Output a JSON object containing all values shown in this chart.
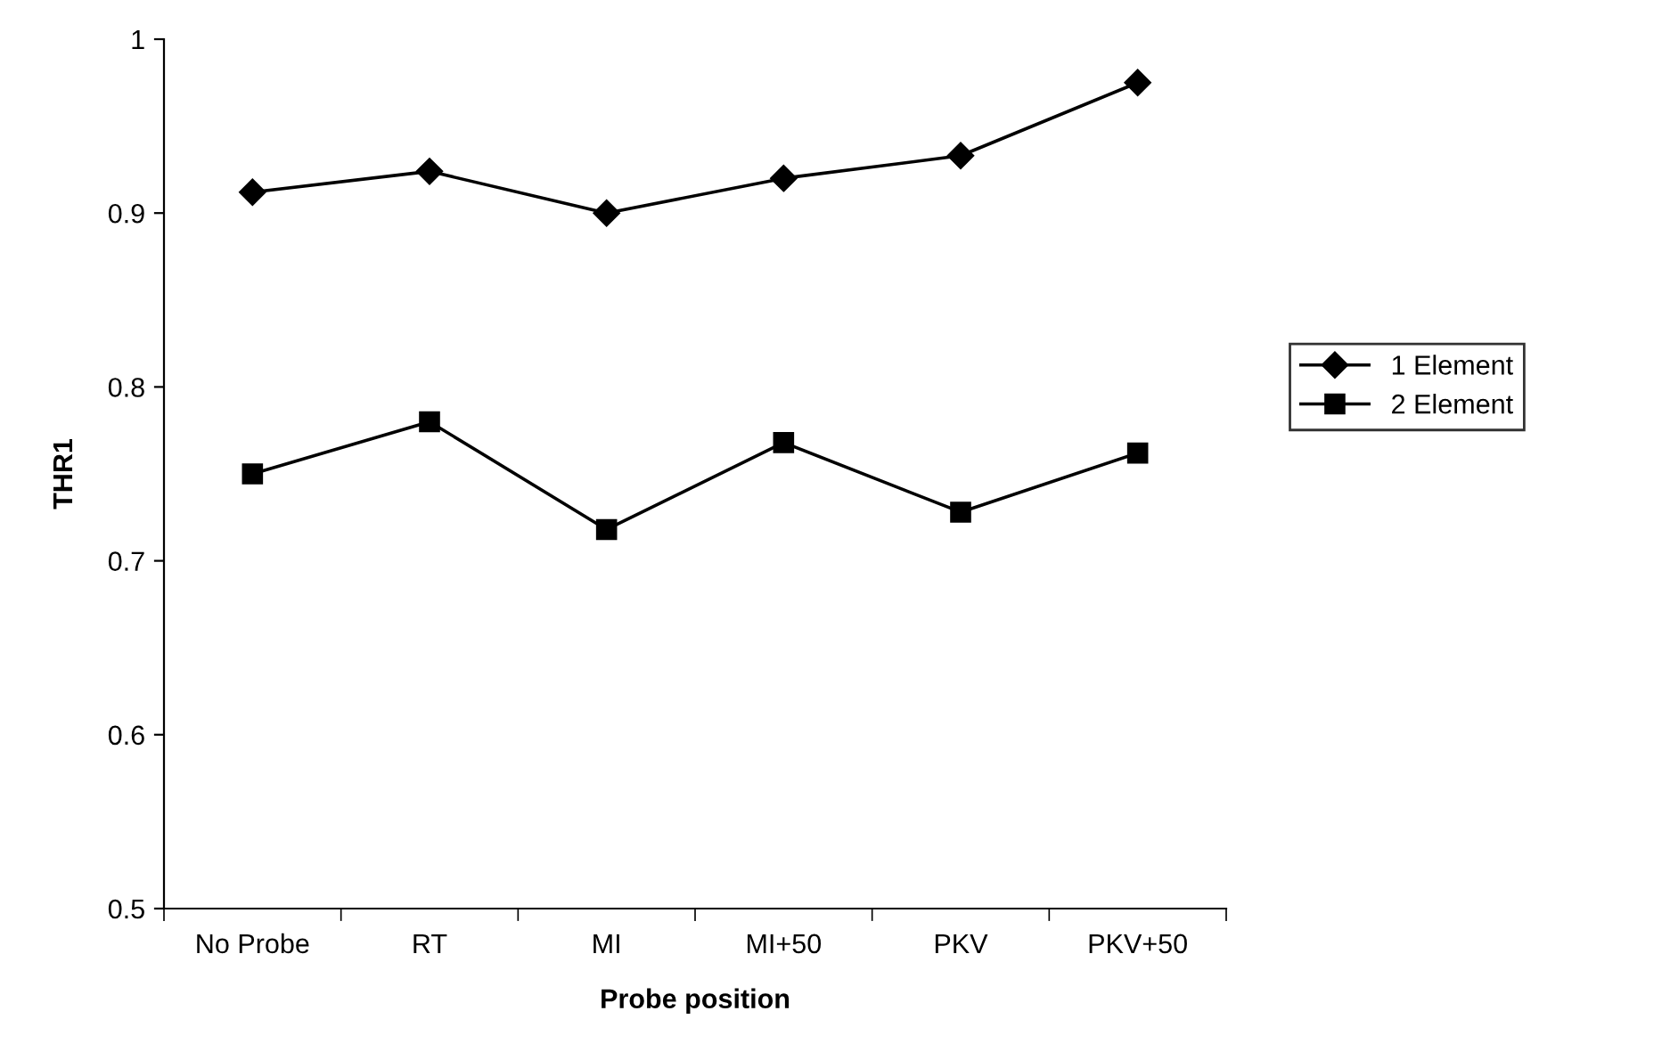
{
  "chart_data": {
    "type": "line",
    "xlabel": "Probe position",
    "ylabel": "THR1",
    "categories": [
      "No Probe",
      "RT",
      "MI",
      "MI+50",
      "PKV",
      "PKV+50"
    ],
    "series": [
      {
        "name": "1 Element",
        "color": "#000000",
        "marker": "diamond",
        "values": [
          0.912,
          0.924,
          0.9,
          0.92,
          0.933,
          0.975
        ]
      },
      {
        "name": "2 Element",
        "color": "#000000",
        "marker": "square",
        "values": [
          0.75,
          0.78,
          0.718,
          0.768,
          0.728,
          0.762
        ]
      }
    ],
    "ylim": [
      0.5,
      1
    ],
    "yticks": [
      0.5,
      0.6,
      0.7,
      0.8,
      0.9,
      1
    ],
    "grid": false,
    "legend": "right",
    "line_style": "solid"
  }
}
